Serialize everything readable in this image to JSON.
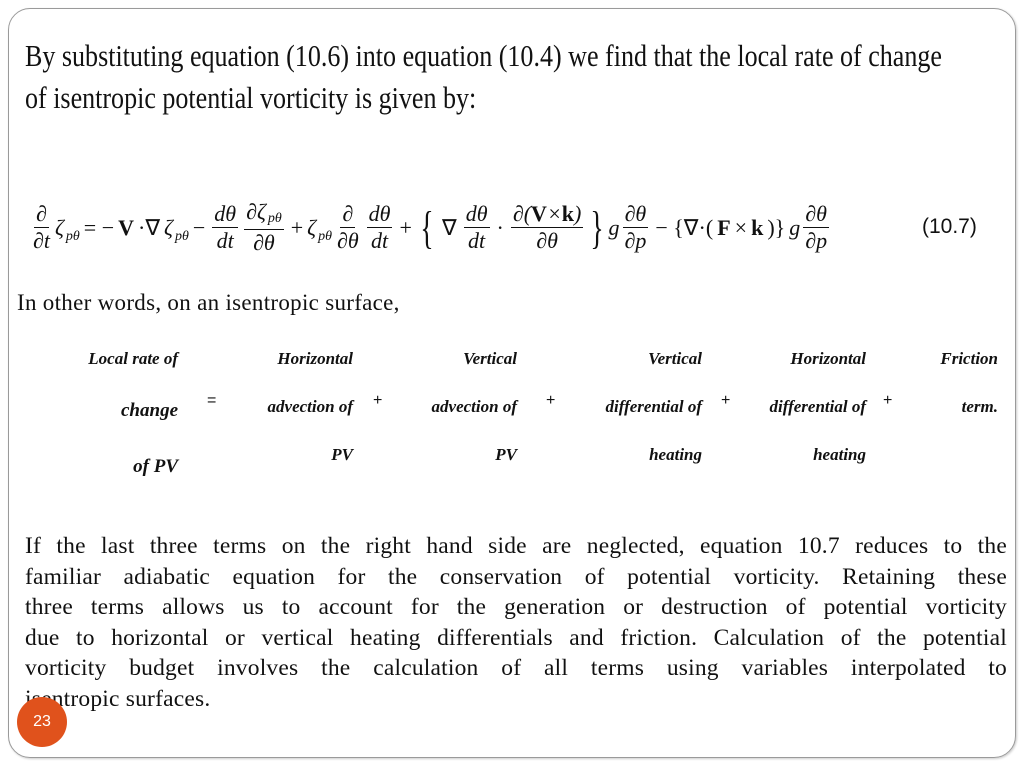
{
  "heading_lines": [
    "By substituting equation (10.6) into equation (10.4) we find that the local rate of change",
    "of isentropic potential vorticity is given by:"
  ],
  "equation_number": "(10.7)",
  "intro": "In other words, on an isentropic surface,",
  "terms": {
    "lhs": [
      "Local rate of",
      "change",
      "of PV"
    ],
    "t1": [
      "Horizontal",
      "advection of",
      "PV"
    ],
    "t2": [
      "Vertical",
      "advection of",
      "PV"
    ],
    "t3": [
      "Vertical",
      "differential of",
      "heating"
    ],
    "t4": [
      "Horizontal",
      "differential of",
      "heating"
    ],
    "t5": [
      "Friction",
      "term."
    ],
    "equals": "=",
    "plus": "+"
  },
  "paragraph_lines": [
    "If the last three terms on the right hand side are neglected, equation 10.7 reduces to the",
    "familiar adiabatic equation for the conservation of potential vorticity. Retaining these",
    "three terms allows us to account for the generation or destruction of potential vorticity",
    "due to horizontal or vertical heating differentials and friction. Calculation of the potential",
    "vorticity budget involves the calculation of all terms using variables interpolated to",
    "isentropic surfaces."
  ],
  "slide_number": "23",
  "colors": {
    "slide_number_bg": "#e0521c",
    "border": "#9a9a9a"
  }
}
